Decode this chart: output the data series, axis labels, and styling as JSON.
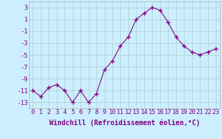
{
  "x": [
    0,
    1,
    2,
    3,
    4,
    5,
    6,
    7,
    8,
    9,
    10,
    11,
    12,
    13,
    14,
    15,
    16,
    17,
    18,
    19,
    20,
    21,
    22,
    23
  ],
  "y": [
    -11,
    -12,
    -10.5,
    -10,
    -11,
    -13,
    -11,
    -13,
    -11.5,
    -7.5,
    -6,
    -3.5,
    -2,
    1,
    2,
    3,
    2.5,
    0.5,
    -2,
    -3.5,
    -4.5,
    -5,
    -4.5,
    -4
  ],
  "line_color": "#800080",
  "marker": "+",
  "marker_size": 4,
  "bg_color": "#cceeff",
  "grid_color": "#aacccc",
  "xlabel": "Windchill (Refroidissement éolien,°C)",
  "xlabel_fontsize": 7,
  "tick_fontsize": 6.5,
  "ylim": [
    -14,
    4
  ],
  "yticks": [
    -13,
    -11,
    -9,
    -7,
    -5,
    -3,
    -1,
    1,
    3
  ],
  "xticks": [
    0,
    1,
    2,
    3,
    4,
    5,
    6,
    7,
    8,
    9,
    10,
    11,
    12,
    13,
    14,
    15,
    16,
    17,
    18,
    19,
    20,
    21,
    22,
    23
  ],
  "xlim": [
    -0.5,
    23.5
  ]
}
